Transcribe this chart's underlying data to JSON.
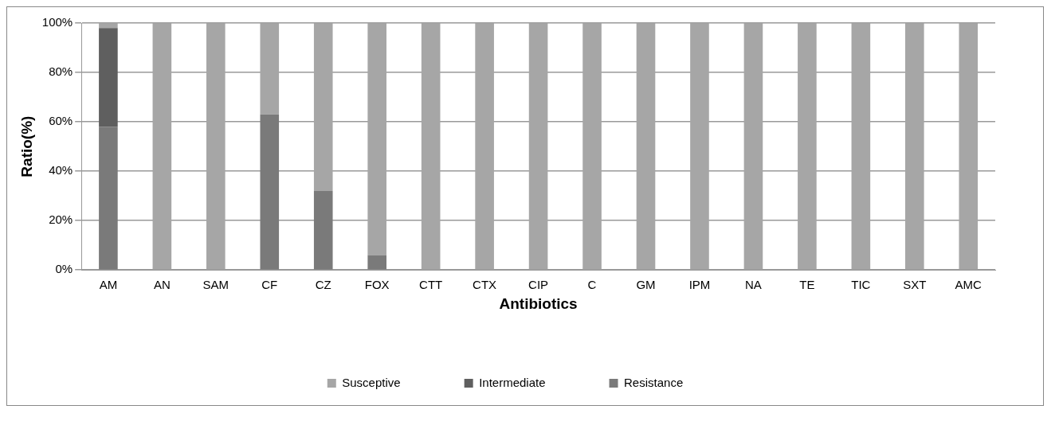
{
  "chart_data": {
    "type": "bar",
    "stacked": true,
    "xlabel": "Antibiotics",
    "ylabel": "Ratio(%)",
    "categories": [
      "AM",
      "AN",
      "SAM",
      "CF",
      "CZ",
      "FOX",
      "CTT",
      "CTX",
      "CIP",
      "C",
      "GM",
      "IPM",
      "NA",
      "TE",
      "TIC",
      "SXT",
      "AMC"
    ],
    "series": [
      {
        "name": "Resistance",
        "color": "#7a7a7a",
        "values": [
          58,
          0,
          0,
          63,
          32,
          6,
          0,
          0,
          0,
          0,
          0,
          0,
          0,
          0,
          0,
          0,
          0
        ]
      },
      {
        "name": "Intermediate",
        "color": "#5f5f5f",
        "values": [
          40,
          0,
          0,
          0,
          0,
          0,
          0,
          0,
          0,
          0,
          0,
          0,
          0,
          0,
          0,
          0,
          0
        ]
      },
      {
        "name": "Susceptive",
        "color": "#a6a6a6",
        "values": [
          2,
          100,
          100,
          37,
          68,
          94,
          100,
          100,
          100,
          100,
          100,
          100,
          100,
          100,
          100,
          100,
          100
        ]
      }
    ],
    "ylim": [
      0,
      100
    ],
    "yticks": [
      {
        "value": 0,
        "label": "0%"
      },
      {
        "value": 20,
        "label": "20%"
      },
      {
        "value": 40,
        "label": "40%"
      },
      {
        "value": 60,
        "label": "60%"
      },
      {
        "value": 80,
        "label": "80%"
      },
      {
        "value": 100,
        "label": "100%"
      }
    ],
    "grid": "y",
    "legend": "bottom"
  }
}
